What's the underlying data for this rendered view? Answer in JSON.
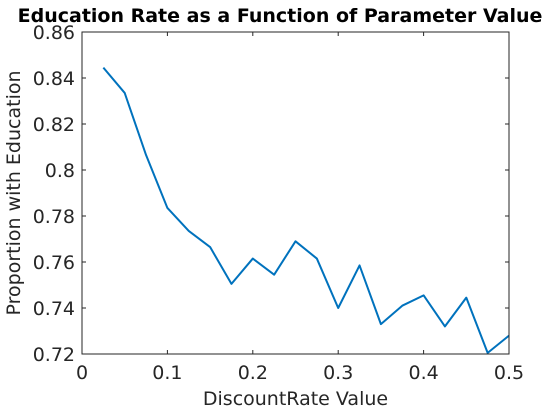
{
  "chart_data": {
    "type": "line",
    "title": "Education Rate as a Function of Parameter Value",
    "xlabel": "DiscountRate Value",
    "ylabel": "Proportion with Education",
    "xlim": [
      0,
      0.5
    ],
    "ylim": [
      0.72,
      0.86
    ],
    "xticks": [
      0,
      0.1,
      0.2,
      0.3,
      0.4,
      0.5
    ],
    "xtick_labels": [
      "0",
      "0.1",
      "0.2",
      "0.3",
      "0.4",
      "0.5"
    ],
    "yticks": [
      0.72,
      0.74,
      0.76,
      0.78,
      0.8,
      0.82,
      0.84,
      0.86
    ],
    "ytick_labels": [
      "0.72",
      "0.74",
      "0.76",
      "0.78",
      "0.8",
      "0.82",
      "0.84",
      "0.86"
    ],
    "grid": false,
    "line_color": "#0072BD",
    "series": [
      {
        "x": [
          0.025,
          0.05,
          0.075,
          0.1,
          0.125,
          0.15,
          0.175,
          0.2,
          0.225,
          0.25,
          0.275,
          0.3,
          0.325,
          0.35,
          0.375,
          0.4,
          0.425,
          0.45,
          0.475,
          0.5
        ],
        "values": [
          0.8445,
          0.8335,
          0.8065,
          0.7835,
          0.7735,
          0.7665,
          0.7505,
          0.7615,
          0.7545,
          0.769,
          0.7615,
          0.74,
          0.7585,
          0.733,
          0.741,
          0.7455,
          0.732,
          0.7445,
          0.7205,
          0.728
        ]
      }
    ]
  }
}
